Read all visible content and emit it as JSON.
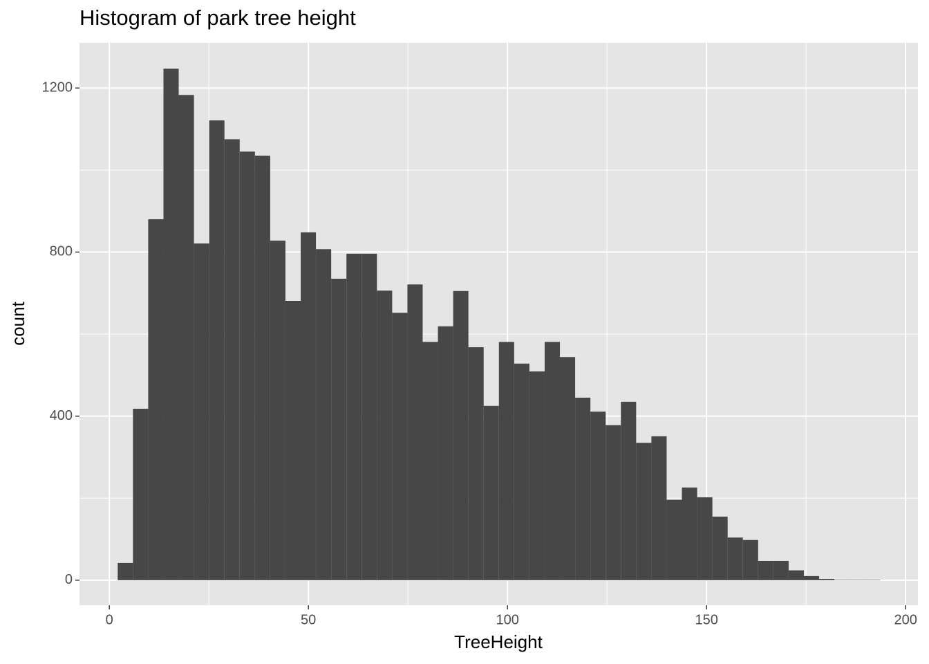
{
  "chart_data": {
    "type": "histogram",
    "title": "Histogram of park tree height",
    "x_label": "TreeHeight",
    "y_label": "count",
    "bins": [
      2.1,
      5.93,
      9.76,
      13.59,
      17.42,
      21.25,
      25.08,
      28.91,
      32.74,
      36.57,
      40.4,
      44.23,
      48.06,
      51.89,
      55.72,
      59.55,
      63.38,
      67.21,
      71.04,
      74.87,
      78.7,
      82.53,
      86.36,
      90.19,
      94.02,
      97.85,
      101.68,
      105.51,
      109.34,
      113.17,
      117,
      120.83,
      124.66,
      128.49,
      132.32,
      136.15,
      139.98,
      143.81,
      147.64,
      151.47,
      155.3,
      159.13,
      162.96,
      166.79,
      170.62,
      174.45,
      178.28,
      182.11,
      185.94,
      189.77,
      193.6
    ],
    "values": [
      42,
      418,
      880,
      1247,
      1183,
      821,
      1121,
      1075,
      1045,
      1035,
      828,
      681,
      848,
      807,
      735,
      796,
      796,
      706,
      652,
      721,
      581,
      619,
      705,
      568,
      425,
      581,
      528,
      509,
      581,
      544,
      445,
      411,
      378,
      435,
      335,
      351,
      196,
      226,
      202,
      155,
      104,
      98,
      47,
      47,
      24,
      10,
      3,
      1,
      1,
      1
    ],
    "color": "#474747",
    "panel_color": "#e5e5e5",
    "xlim": [
      -7.5,
      203.1
    ],
    "ylim": [
      -61,
      1310
    ],
    "xticks": [
      0,
      50,
      100,
      150,
      200
    ],
    "yticks": [
      0,
      400,
      800,
      1200
    ],
    "grid": true,
    "minor_grid": true
  }
}
